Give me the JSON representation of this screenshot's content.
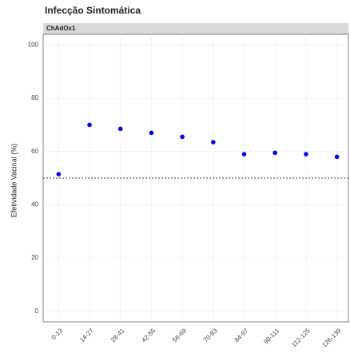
{
  "chart_data": {
    "type": "scatter",
    "title": "Infecção Sintomática",
    "facet": "ChAdOx1",
    "y_label": "Efetividade Vacinal (%)",
    "categories": [
      "0-13",
      "14-27",
      "28-41",
      "42-55",
      "56-69",
      "70-83",
      "84-97",
      "98-111",
      "112-125",
      "126-139"
    ],
    "values": [
      51.5,
      70,
      68.5,
      67,
      65.5,
      63.5,
      59,
      59.5,
      59,
      58
    ],
    "color": "#0000ff",
    "ylim": [
      -4,
      104
    ],
    "yticks": [
      0,
      20,
      40,
      60,
      80,
      100
    ],
    "grid": true,
    "reference_line": 50
  }
}
